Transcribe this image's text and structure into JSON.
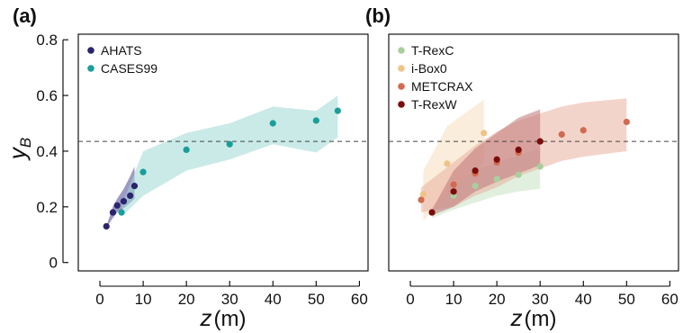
{
  "figure": {
    "ylabel_main": "y",
    "ylabel_sub": "B",
    "xlabel_main": "z",
    "xlabel_unit": "(m)"
  },
  "chart_data": [
    {
      "type": "scatter",
      "panel_label": "(a)",
      "xlim": [
        -5,
        62
      ],
      "ylim": [
        -0.03,
        0.82
      ],
      "xticks": [
        0,
        10,
        20,
        30,
        40,
        50,
        60
      ],
      "yticks": [
        0,
        0.2,
        0.4,
        0.6,
        0.8
      ],
      "ytick_labels": [
        "0",
        "0.2",
        "0.4",
        "0.6",
        "0.8"
      ],
      "reference_line_y": 0.435,
      "legend_position": "top-left",
      "series": [
        {
          "name": "AHATS",
          "color": "#2a246e",
          "band_color": "#4b4690",
          "x": [
            1.5,
            3,
            4,
            5.5,
            7,
            8
          ],
          "y": [
            0.13,
            0.18,
            0.205,
            0.22,
            0.24,
            0.275
          ],
          "band_lower": [
            0.125,
            0.16,
            0.18,
            0.195,
            0.215,
            0.23
          ],
          "band_upper": [
            0.13,
            0.2,
            0.23,
            0.265,
            0.31,
            0.345
          ]
        },
        {
          "name": "CASES99",
          "color": "#1a9e98",
          "band_color": "#9fd8d6",
          "x": [
            5,
            10,
            20,
            30,
            40,
            50,
            55
          ],
          "y": [
            0.18,
            0.325,
            0.405,
            0.425,
            0.5,
            0.51,
            0.545
          ],
          "band_lower": [
            0.165,
            0.24,
            0.33,
            0.37,
            0.425,
            0.395,
            0.45
          ],
          "band_upper": [
            0.205,
            0.4,
            0.465,
            0.5,
            0.56,
            0.545,
            0.6
          ]
        }
      ]
    },
    {
      "type": "scatter",
      "panel_label": "(b)",
      "xlim": [
        -5,
        62
      ],
      "ylim": [
        -0.03,
        0.82
      ],
      "xticks": [
        0,
        10,
        20,
        30,
        40,
        50,
        60
      ],
      "yticks": [
        0,
        0.2,
        0.4,
        0.6,
        0.8
      ],
      "reference_line_y": 0.435,
      "legend_position": "top-left",
      "series": [
        {
          "name": "T-RexC",
          "color": "#a9cf9e",
          "band_color": "#c9e4c2",
          "x": [
            5,
            10,
            15,
            20,
            25,
            30
          ],
          "y": [
            0.18,
            0.24,
            0.275,
            0.3,
            0.315,
            0.345
          ],
          "band_lower": [
            0.16,
            0.19,
            0.215,
            0.24,
            0.255,
            0.265
          ],
          "band_upper": [
            0.2,
            0.29,
            0.33,
            0.36,
            0.385,
            0.41
          ]
        },
        {
          "name": "i-Box0",
          "color": "#efc387",
          "band_color": "#f5dfbd",
          "x": [
            3,
            8.5,
            17
          ],
          "y": [
            0.245,
            0.355,
            0.465
          ],
          "band_lower": [
            0.15,
            0.24,
            0.36
          ],
          "band_upper": [
            0.33,
            0.49,
            0.585
          ]
        },
        {
          "name": "METCRAX",
          "color": "#d16a4e",
          "band_color": "#eab0a0",
          "x": [
            2.5,
            10,
            15,
            20,
            25,
            35,
            40,
            50
          ],
          "y": [
            0.225,
            0.28,
            0.32,
            0.36,
            0.395,
            0.46,
            0.475,
            0.505
          ],
          "band_lower": [
            0.18,
            0.2,
            0.24,
            0.27,
            0.31,
            0.365,
            0.38,
            0.4
          ],
          "band_upper": [
            0.27,
            0.36,
            0.42,
            0.47,
            0.51,
            0.56,
            0.575,
            0.59
          ]
        },
        {
          "name": "T-RexW",
          "color": "#7b0c0c",
          "band_color": "#c0777a",
          "x": [
            5,
            10,
            15,
            20,
            25,
            30
          ],
          "y": [
            0.18,
            0.255,
            0.33,
            0.37,
            0.405,
            0.435
          ],
          "band_lower": [
            0.17,
            0.2,
            0.255,
            0.29,
            0.32,
            0.35
          ],
          "band_upper": [
            0.19,
            0.33,
            0.41,
            0.465,
            0.52,
            0.55
          ]
        }
      ]
    }
  ]
}
